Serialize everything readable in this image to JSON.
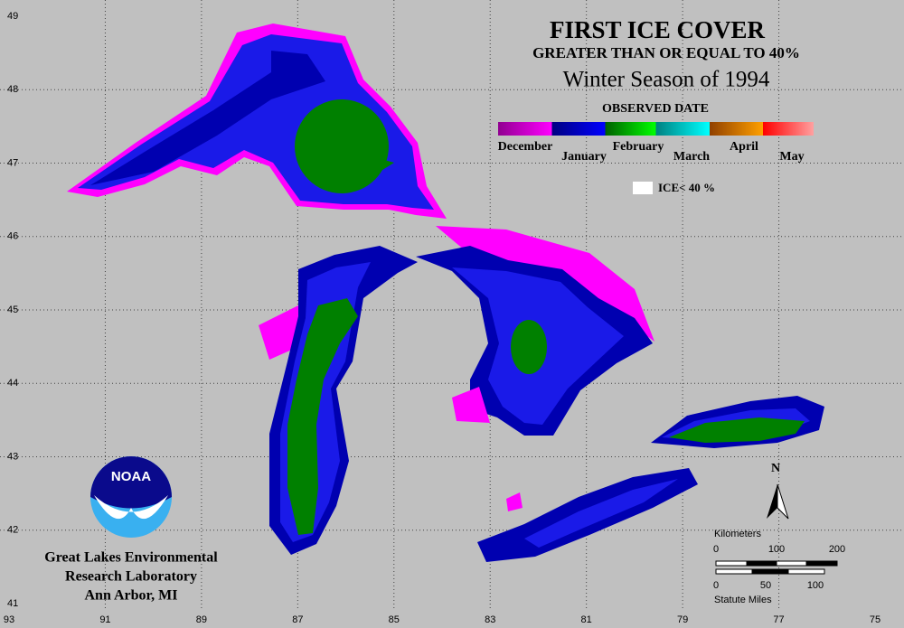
{
  "title": "FIRST ICE COVER",
  "subtitle": "GREATER THAN OR EQUAL TO 40%",
  "season": "Winter Season of 1994",
  "legend": {
    "title": "OBSERVED DATE",
    "months": [
      "December",
      "January",
      "February",
      "March",
      "April",
      "May"
    ],
    "ice_note": "ICE< 40 %"
  },
  "north": "N",
  "scale": {
    "km_label": "Kilometers",
    "km_ticks": [
      0,
      100,
      200
    ],
    "mi_ticks": [
      0,
      50,
      100
    ],
    "mi_label": "Statute Miles"
  },
  "latitudes": [
    49,
    48,
    47,
    46,
    45,
    44,
    43,
    42,
    41
  ],
  "longitudes": [
    93,
    91,
    89,
    87,
    85,
    83,
    81,
    79,
    77,
    75
  ],
  "logo": "NOAA",
  "organization": [
    "Great Lakes Environmental",
    "Research Laboratory",
    "Ann Arbor, MI"
  ]
}
